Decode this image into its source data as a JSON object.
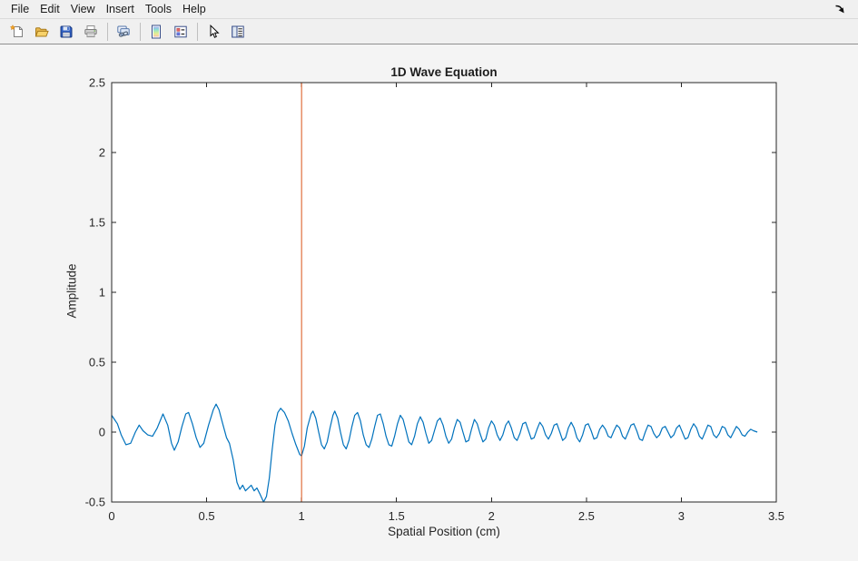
{
  "menubar": {
    "items": [
      "File",
      "Edit",
      "View",
      "Insert",
      "Tools",
      "Help"
    ],
    "dock_icon": "dock-figure-icon"
  },
  "toolbar": {
    "icons": [
      "new-figure-icon",
      "open-file-icon",
      "save-figure-icon",
      "print-figure-icon",
      "link-plot-icon",
      "insert-colorbar-icon",
      "insert-legend-icon",
      "edit-plot-icon",
      "property-inspector-icon"
    ]
  },
  "chart_data": {
    "type": "line",
    "title": "1D Wave Equation",
    "xlabel": "Spatial Position (cm)",
    "ylabel": "Amplitude",
    "xlim": [
      0,
      3.5
    ],
    "ylim": [
      -0.5,
      2.5
    ],
    "xticks": [
      0,
      0.5,
      1,
      1.5,
      2,
      2.5,
      3,
      3.5
    ],
    "yticks": [
      -0.5,
      0,
      0.5,
      1,
      1.5,
      2,
      2.5
    ],
    "grid": false,
    "legend": false,
    "axis_color": "#262626",
    "plot_bg": "#ffffff",
    "series": [
      {
        "name": "wave-amplitude",
        "kind": "line",
        "color": "#0072BD",
        "points": [
          [
            0.0,
            0.12
          ],
          [
            0.03,
            0.06
          ],
          [
            0.05,
            -0.02
          ],
          [
            0.075,
            -0.09
          ],
          [
            0.1,
            -0.08
          ],
          [
            0.125,
            0.0
          ],
          [
            0.145,
            0.05
          ],
          [
            0.165,
            0.01
          ],
          [
            0.19,
            -0.02
          ],
          [
            0.215,
            -0.03
          ],
          [
            0.24,
            0.03
          ],
          [
            0.27,
            0.13
          ],
          [
            0.295,
            0.05
          ],
          [
            0.315,
            -0.08
          ],
          [
            0.33,
            -0.13
          ],
          [
            0.35,
            -0.07
          ],
          [
            0.37,
            0.04
          ],
          [
            0.39,
            0.13
          ],
          [
            0.405,
            0.14
          ],
          [
            0.425,
            0.06
          ],
          [
            0.445,
            -0.04
          ],
          [
            0.465,
            -0.11
          ],
          [
            0.485,
            -0.08
          ],
          [
            0.51,
            0.05
          ],
          [
            0.535,
            0.16
          ],
          [
            0.55,
            0.2
          ],
          [
            0.565,
            0.16
          ],
          [
            0.585,
            0.06
          ],
          [
            0.605,
            -0.04
          ],
          [
            0.62,
            -0.08
          ],
          [
            0.64,
            -0.2
          ],
          [
            0.66,
            -0.36
          ],
          [
            0.675,
            -0.41
          ],
          [
            0.69,
            -0.38
          ],
          [
            0.705,
            -0.42
          ],
          [
            0.72,
            -0.4
          ],
          [
            0.735,
            -0.38
          ],
          [
            0.75,
            -0.42
          ],
          [
            0.765,
            -0.4
          ],
          [
            0.78,
            -0.44
          ],
          [
            0.8,
            -0.5
          ],
          [
            0.815,
            -0.46
          ],
          [
            0.83,
            -0.33
          ],
          [
            0.845,
            -0.13
          ],
          [
            0.86,
            0.05
          ],
          [
            0.875,
            0.14
          ],
          [
            0.89,
            0.17
          ],
          [
            0.91,
            0.14
          ],
          [
            0.93,
            0.08
          ],
          [
            0.95,
            -0.01
          ],
          [
            0.97,
            -0.09
          ],
          [
            0.99,
            -0.16
          ],
          [
            1.0,
            -0.17
          ],
          [
            1.015,
            -0.1
          ],
          [
            1.03,
            0.03
          ],
          [
            1.05,
            0.13
          ],
          [
            1.06,
            0.15
          ],
          [
            1.075,
            0.1
          ],
          [
            1.09,
            0.0
          ],
          [
            1.105,
            -0.09
          ],
          [
            1.12,
            -0.12
          ],
          [
            1.135,
            -0.07
          ],
          [
            1.15,
            0.03
          ],
          [
            1.165,
            0.12
          ],
          [
            1.175,
            0.15
          ],
          [
            1.19,
            0.1
          ],
          [
            1.205,
            0.0
          ],
          [
            1.22,
            -0.09
          ],
          [
            1.235,
            -0.12
          ],
          [
            1.25,
            -0.06
          ],
          [
            1.265,
            0.04
          ],
          [
            1.28,
            0.12
          ],
          [
            1.295,
            0.14
          ],
          [
            1.31,
            0.08
          ],
          [
            1.325,
            -0.02
          ],
          [
            1.34,
            -0.09
          ],
          [
            1.355,
            -0.11
          ],
          [
            1.37,
            -0.05
          ],
          [
            1.385,
            0.04
          ],
          [
            1.4,
            0.12
          ],
          [
            1.415,
            0.13
          ],
          [
            1.43,
            0.06
          ],
          [
            1.445,
            -0.03
          ],
          [
            1.46,
            -0.09
          ],
          [
            1.475,
            -0.1
          ],
          [
            1.49,
            -0.03
          ],
          [
            1.505,
            0.06
          ],
          [
            1.52,
            0.12
          ],
          [
            1.535,
            0.09
          ],
          [
            1.55,
            0.01
          ],
          [
            1.565,
            -0.07
          ],
          [
            1.58,
            -0.09
          ],
          [
            1.595,
            -0.03
          ],
          [
            1.61,
            0.06
          ],
          [
            1.625,
            0.11
          ],
          [
            1.64,
            0.07
          ],
          [
            1.655,
            -0.01
          ],
          [
            1.67,
            -0.08
          ],
          [
            1.685,
            -0.06
          ],
          [
            1.7,
            0.01
          ],
          [
            1.715,
            0.08
          ],
          [
            1.73,
            0.1
          ],
          [
            1.745,
            0.05
          ],
          [
            1.76,
            -0.03
          ],
          [
            1.775,
            -0.08
          ],
          [
            1.79,
            -0.05
          ],
          [
            1.805,
            0.03
          ],
          [
            1.82,
            0.09
          ],
          [
            1.835,
            0.07
          ],
          [
            1.85,
            0.0
          ],
          [
            1.865,
            -0.07
          ],
          [
            1.88,
            -0.06
          ],
          [
            1.895,
            0.02
          ],
          [
            1.91,
            0.09
          ],
          [
            1.925,
            0.06
          ],
          [
            1.94,
            -0.01
          ],
          [
            1.955,
            -0.07
          ],
          [
            1.97,
            -0.05
          ],
          [
            1.985,
            0.03
          ],
          [
            2.0,
            0.08
          ],
          [
            2.015,
            0.05
          ],
          [
            2.03,
            -0.02
          ],
          [
            2.045,
            -0.06
          ],
          [
            2.06,
            -0.02
          ],
          [
            2.075,
            0.05
          ],
          [
            2.09,
            0.08
          ],
          [
            2.105,
            0.03
          ],
          [
            2.12,
            -0.04
          ],
          [
            2.135,
            -0.06
          ],
          [
            2.15,
            -0.01
          ],
          [
            2.165,
            0.06
          ],
          [
            2.18,
            0.07
          ],
          [
            2.195,
            0.01
          ],
          [
            2.21,
            -0.05
          ],
          [
            2.225,
            -0.04
          ],
          [
            2.24,
            0.02
          ],
          [
            2.255,
            0.07
          ],
          [
            2.27,
            0.04
          ],
          [
            2.285,
            -0.02
          ],
          [
            2.3,
            -0.05
          ],
          [
            2.315,
            -0.01
          ],
          [
            2.33,
            0.05
          ],
          [
            2.345,
            0.06
          ],
          [
            2.36,
            0.0
          ],
          [
            2.375,
            -0.06
          ],
          [
            2.39,
            -0.04
          ],
          [
            2.405,
            0.03
          ],
          [
            2.42,
            0.07
          ],
          [
            2.435,
            0.03
          ],
          [
            2.45,
            -0.04
          ],
          [
            2.465,
            -0.07
          ],
          [
            2.48,
            -0.02
          ],
          [
            2.495,
            0.05
          ],
          [
            2.51,
            0.06
          ],
          [
            2.525,
            0.01
          ],
          [
            2.54,
            -0.05
          ],
          [
            2.555,
            -0.04
          ],
          [
            2.57,
            0.02
          ],
          [
            2.585,
            0.05
          ],
          [
            2.6,
            0.02
          ],
          [
            2.615,
            -0.03
          ],
          [
            2.63,
            -0.04
          ],
          [
            2.645,
            0.01
          ],
          [
            2.66,
            0.05
          ],
          [
            2.675,
            0.03
          ],
          [
            2.69,
            -0.03
          ],
          [
            2.705,
            -0.05
          ],
          [
            2.72,
            0.0
          ],
          [
            2.735,
            0.05
          ],
          [
            2.75,
            0.06
          ],
          [
            2.765,
            0.01
          ],
          [
            2.78,
            -0.05
          ],
          [
            2.795,
            -0.06
          ],
          [
            2.81,
            0.0
          ],
          [
            2.825,
            0.05
          ],
          [
            2.84,
            0.04
          ],
          [
            2.855,
            -0.01
          ],
          [
            2.87,
            -0.04
          ],
          [
            2.885,
            -0.02
          ],
          [
            2.9,
            0.03
          ],
          [
            2.915,
            0.04
          ],
          [
            2.93,
            0.0
          ],
          [
            2.945,
            -0.04
          ],
          [
            2.96,
            -0.02
          ],
          [
            2.975,
            0.03
          ],
          [
            2.99,
            0.05
          ],
          [
            3.005,
            0.0
          ],
          [
            3.02,
            -0.05
          ],
          [
            3.035,
            -0.04
          ],
          [
            3.05,
            0.02
          ],
          [
            3.065,
            0.06
          ],
          [
            3.08,
            0.03
          ],
          [
            3.095,
            -0.03
          ],
          [
            3.11,
            -0.05
          ],
          [
            3.125,
            0.0
          ],
          [
            3.14,
            0.05
          ],
          [
            3.155,
            0.04
          ],
          [
            3.17,
            -0.02
          ],
          [
            3.185,
            -0.04
          ],
          [
            3.2,
            -0.01
          ],
          [
            3.215,
            0.04
          ],
          [
            3.23,
            0.03
          ],
          [
            3.245,
            -0.02
          ],
          [
            3.26,
            -0.04
          ],
          [
            3.275,
            0.0
          ],
          [
            3.29,
            0.04
          ],
          [
            3.305,
            0.02
          ],
          [
            3.32,
            -0.02
          ],
          [
            3.335,
            -0.03
          ],
          [
            3.35,
            0.0
          ],
          [
            3.365,
            0.02
          ],
          [
            3.38,
            0.01
          ],
          [
            3.4,
            0.0
          ]
        ]
      },
      {
        "name": "position-marker",
        "kind": "vline",
        "color": "#D95319",
        "x": 1.0,
        "from": -0.5,
        "to": 2.5
      }
    ]
  }
}
